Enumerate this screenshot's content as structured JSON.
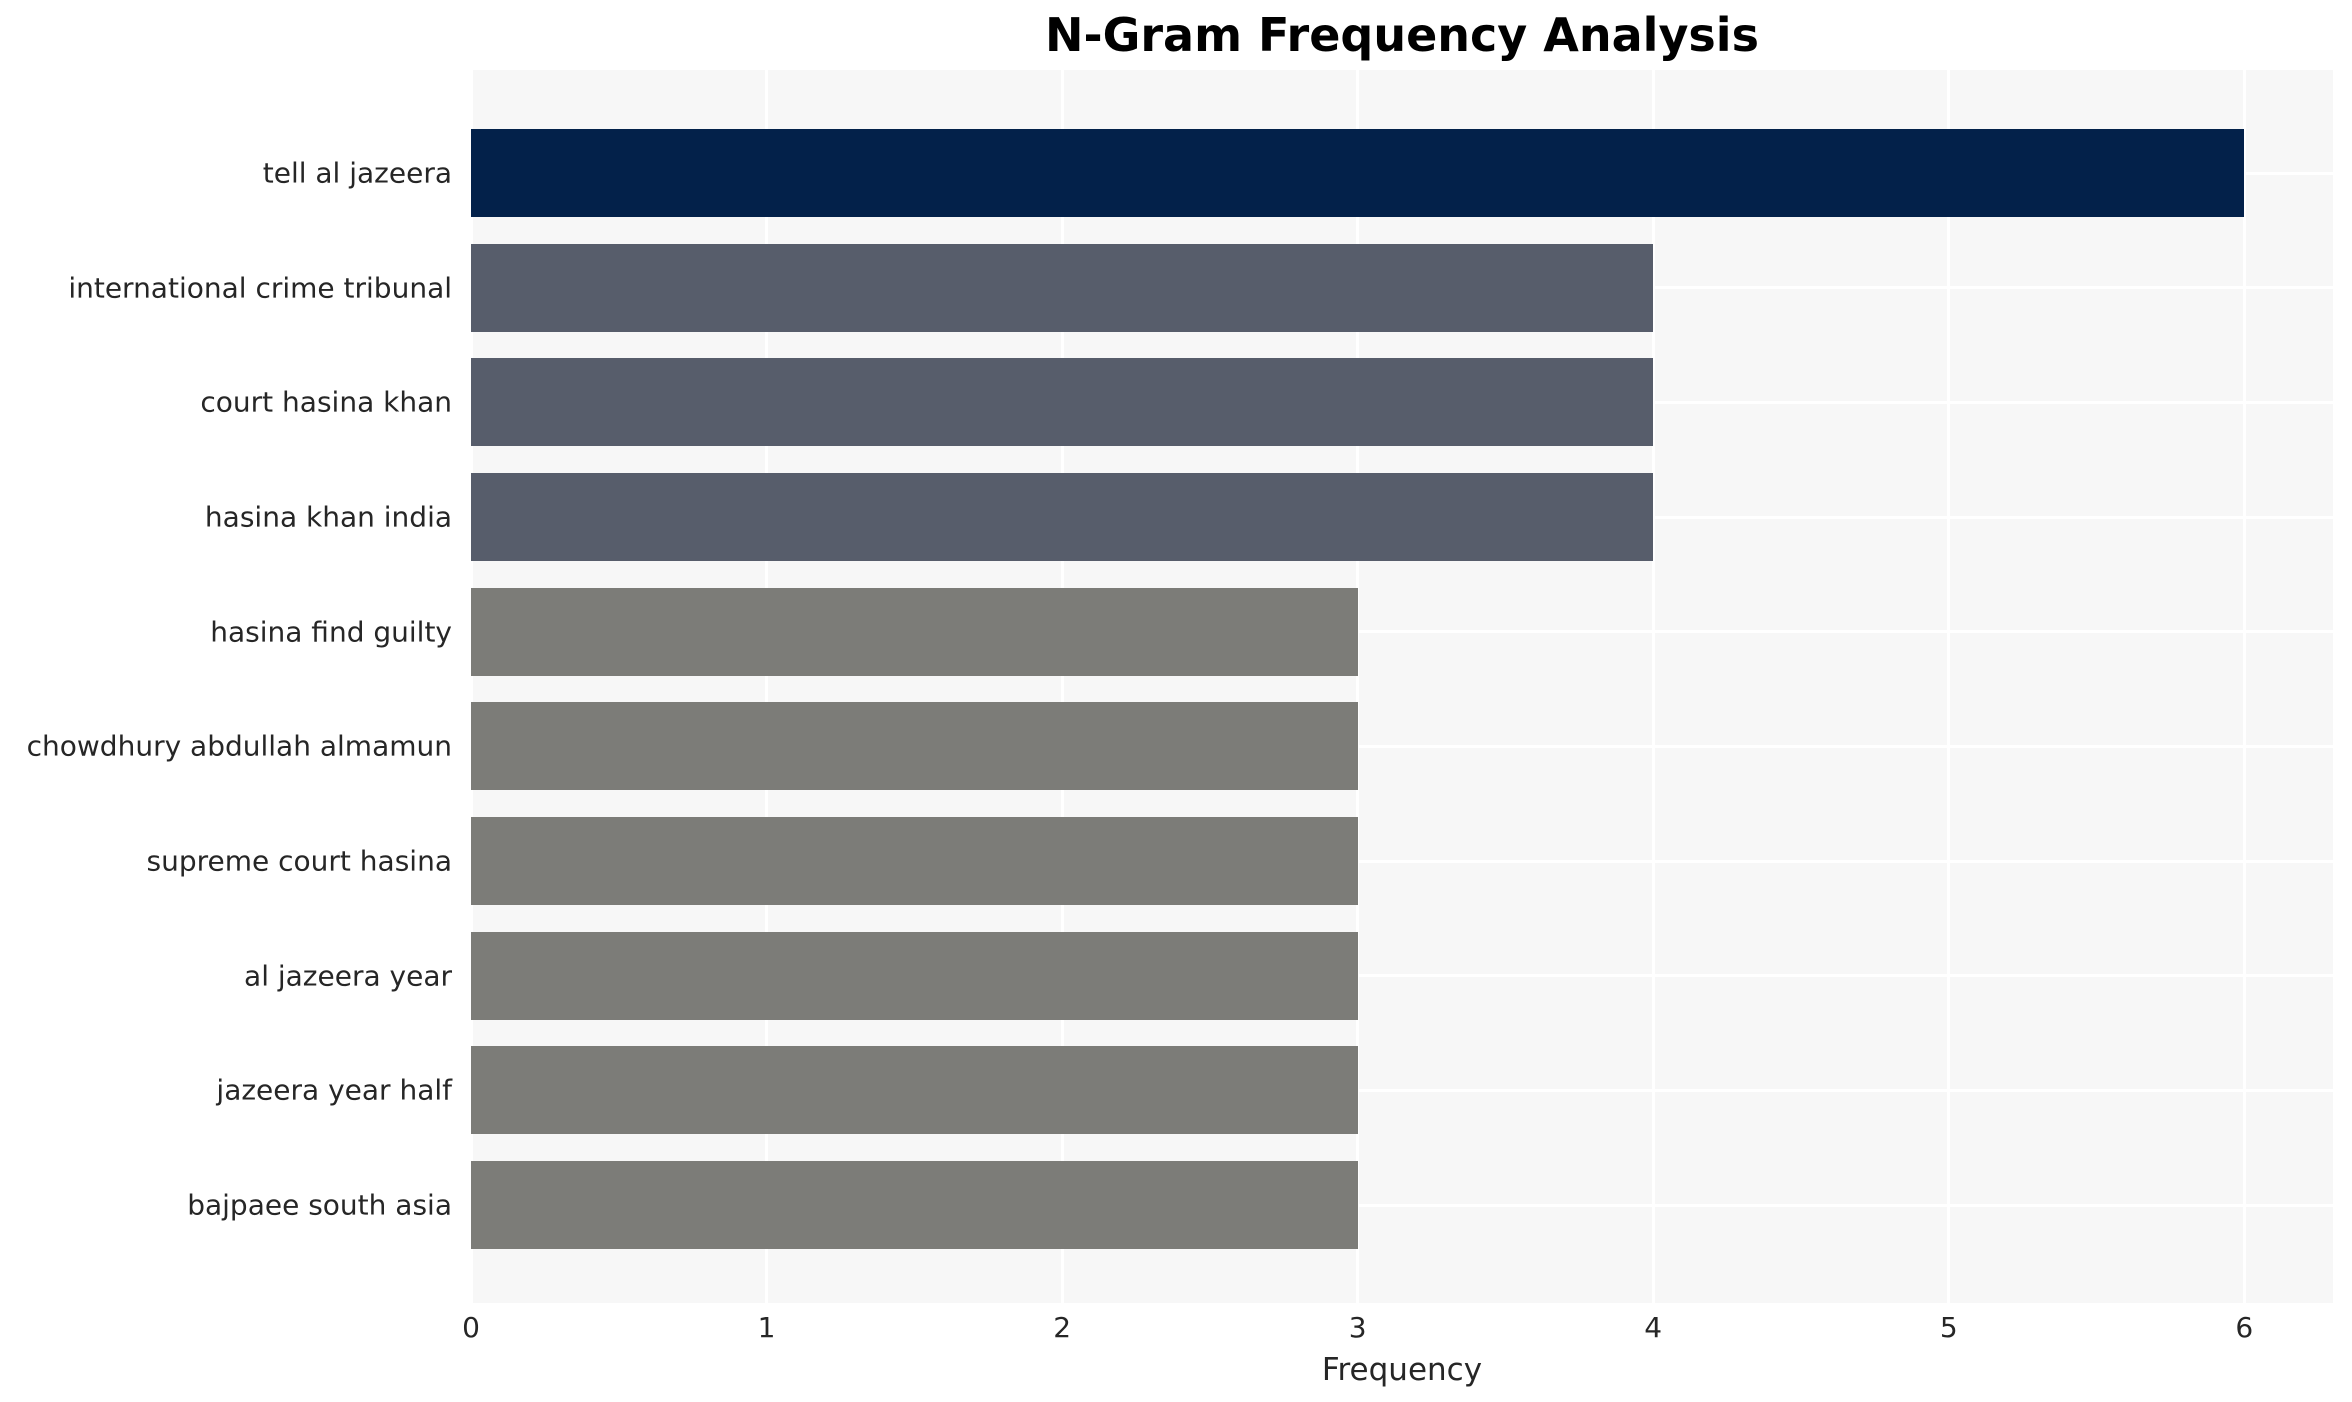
{
  "chart_data": {
    "type": "bar",
    "orientation": "horizontal",
    "title": "N-Gram Frequency Analysis",
    "xlabel": "Frequency",
    "ylabel": "",
    "categories": [
      "tell al jazeera",
      "international crime tribunal",
      "court hasina khan",
      "hasina khan india",
      "hasina find guilty",
      "chowdhury abdullah almamun",
      "supreme court hasina",
      "al jazeera year",
      "jazeera year half",
      "bajpaee south asia"
    ],
    "values": [
      6,
      4,
      4,
      4,
      3,
      3,
      3,
      3,
      3,
      3
    ],
    "bar_colors": [
      "#03214a",
      "#575d6b",
      "#575d6b",
      "#575d6b",
      "#7c7c78",
      "#7c7c78",
      "#7c7c78",
      "#7c7c78",
      "#7c7c78",
      "#7c7c78"
    ],
    "xlim": [
      0,
      6.3
    ],
    "xticks": [
      0,
      1,
      2,
      3,
      4,
      5,
      6
    ],
    "grid": true,
    "legend": "none",
    "colors": {
      "accent_navy": "#03214a",
      "slate": "#575d6b",
      "gray": "#7c7c78",
      "plot_bg": "#f7f7f7",
      "grid": "#ffffff",
      "text": "#262626",
      "title": "#000000",
      "page_bg": "#ffffff"
    }
  }
}
